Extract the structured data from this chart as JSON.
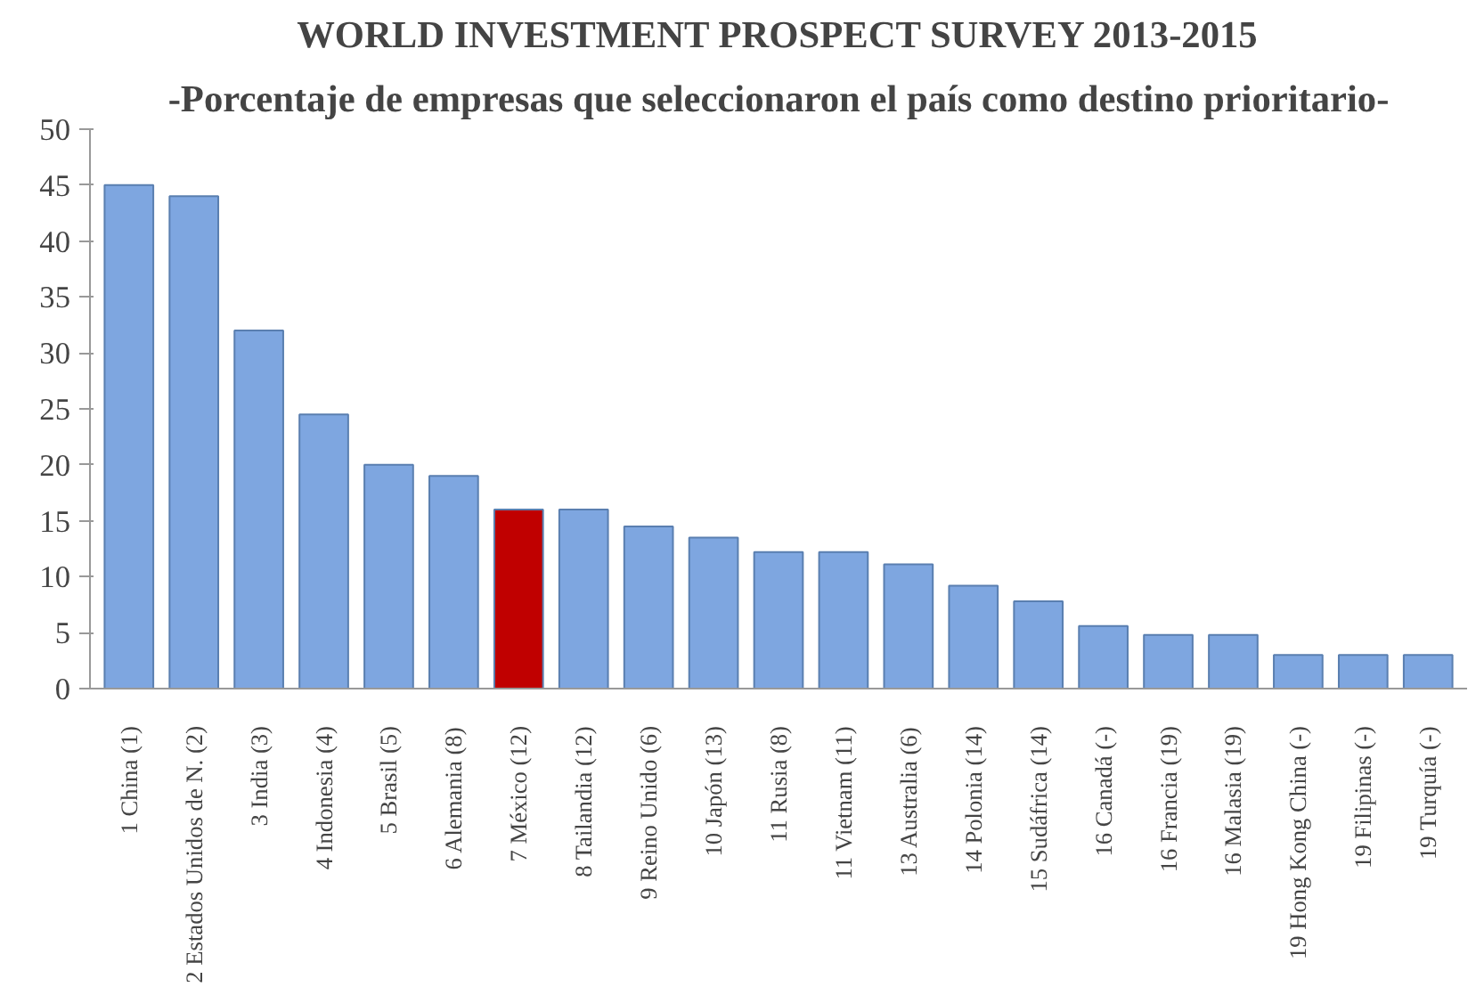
{
  "chart_data": {
    "type": "bar",
    "title": "WORLD INVESTMENT PROSPECT SURVEY 2013-2015",
    "subtitle": "-Porcentaje de empresas que seleccionaron el país como destino prioritario-",
    "categories": [
      "1 China    (1)",
      "2 Estados Unidos de N.    (2)",
      "3 India    (3)",
      "4 Indonesia    (4)",
      "5 Brasil    (5)",
      "6 Alemania    (8)",
      "7 México    (12)",
      "8 Tailandia    (12)",
      "9 Reino Unido    (6)",
      "10 Japón    (13)",
      "11 Rusia    (8)",
      "11 Vietnam    (11)",
      "13 Australia    (6)",
      "14 Polonia    (14)",
      "15 Sudáfrica    (14)",
      "16 Canadá    (-)",
      "16 Francia    (19)",
      "16 Malasia    (19)",
      "19 Hong Kong China    (-)",
      "19 Filipinas    (-)",
      "19 Turquía    (-)"
    ],
    "values": [
      45,
      44,
      32,
      24.5,
      20,
      19,
      16,
      16,
      14.5,
      13.5,
      12.2,
      12.2,
      11.1,
      9.2,
      7.8,
      5.6,
      4.8,
      4.8,
      3,
      3,
      3
    ],
    "colors": [
      "#7ea6e0",
      "#7ea6e0",
      "#7ea6e0",
      "#7ea6e0",
      "#7ea6e0",
      "#7ea6e0",
      "#c00000",
      "#7ea6e0",
      "#7ea6e0",
      "#7ea6e0",
      "#7ea6e0",
      "#7ea6e0",
      "#7ea6e0",
      "#7ea6e0",
      "#7ea6e0",
      "#7ea6e0",
      "#7ea6e0",
      "#7ea6e0",
      "#7ea6e0",
      "#7ea6e0",
      "#7ea6e0"
    ],
    "ylim": [
      0,
      50
    ],
    "yticks": [
      0,
      5,
      10,
      15,
      20,
      25,
      30,
      35,
      40,
      45,
      50
    ],
    "grid": false
  }
}
